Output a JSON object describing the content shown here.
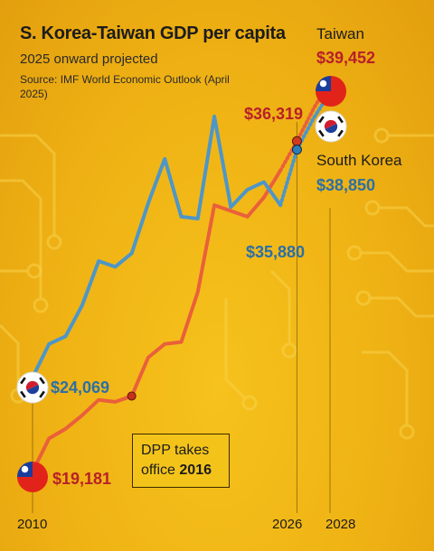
{
  "title": "S. Korea-Taiwan GDP per capita",
  "subtitle": "2025 onward projected",
  "source": "Source: IMF World Economic Outlook (April 2025)",
  "colors": {
    "taiwan": "#e9603a",
    "south_korea": "#4d96c8",
    "taiwan_value": "#b8202a",
    "south_korea_value": "#2b6fa6",
    "background": "#f0b514"
  },
  "labels": {
    "taiwan_name": "Taiwan",
    "taiwan_2028": "$39,452",
    "korea_name": "South Korea",
    "korea_2028": "$38,850",
    "taiwan_2026": "$36,319",
    "korea_2026": "$35,880",
    "korea_2010": "$24,069",
    "taiwan_2010": "$19,181",
    "dpp_line1": "DPP takes",
    "dpp_line2": "office",
    "dpp_year": "2016",
    "year_2010": "2010",
    "year_2026": "2026",
    "year_2028": "2028"
  },
  "icons": [
    "taiwan-flag-icon",
    "south-korea-flag-icon"
  ],
  "chart_data": {
    "type": "line",
    "title": "S. Korea-Taiwan GDP per capita",
    "subtitle": "2025 onward projected",
    "x": [
      2010,
      2011,
      2012,
      2013,
      2014,
      2015,
      2016,
      2017,
      2018,
      2019,
      2020,
      2021,
      2022,
      2023,
      2024,
      2025,
      2026,
      2027,
      2028
    ],
    "xlim": [
      2010,
      2028
    ],
    "ylim": [
      16000,
      42000
    ],
    "x_tick_labels": [
      "2010",
      "2026",
      "2028"
    ],
    "projected_from": 2025,
    "series": [
      {
        "name": "Taiwan",
        "values": [
          19181,
          20900,
          21400,
          22100,
          22900,
          22800,
          23100,
          25100,
          25800,
          25900,
          28500,
          33000,
          32700,
          32400,
          33400,
          34800,
          36319,
          38000,
          39452
        ]
      },
      {
        "name": "South Korea",
        "values": [
          24069,
          25800,
          26200,
          27800,
          30100,
          29800,
          30500,
          33100,
          35400,
          32400,
          32300,
          37600,
          32900,
          33800,
          34200,
          33000,
          35880,
          37500,
          38850
        ]
      }
    ],
    "annotations": [
      {
        "text": "DPP takes office 2016",
        "x": 2016,
        "series": "Taiwan"
      }
    ],
    "grid": false,
    "legend": "direct labels at line ends"
  }
}
